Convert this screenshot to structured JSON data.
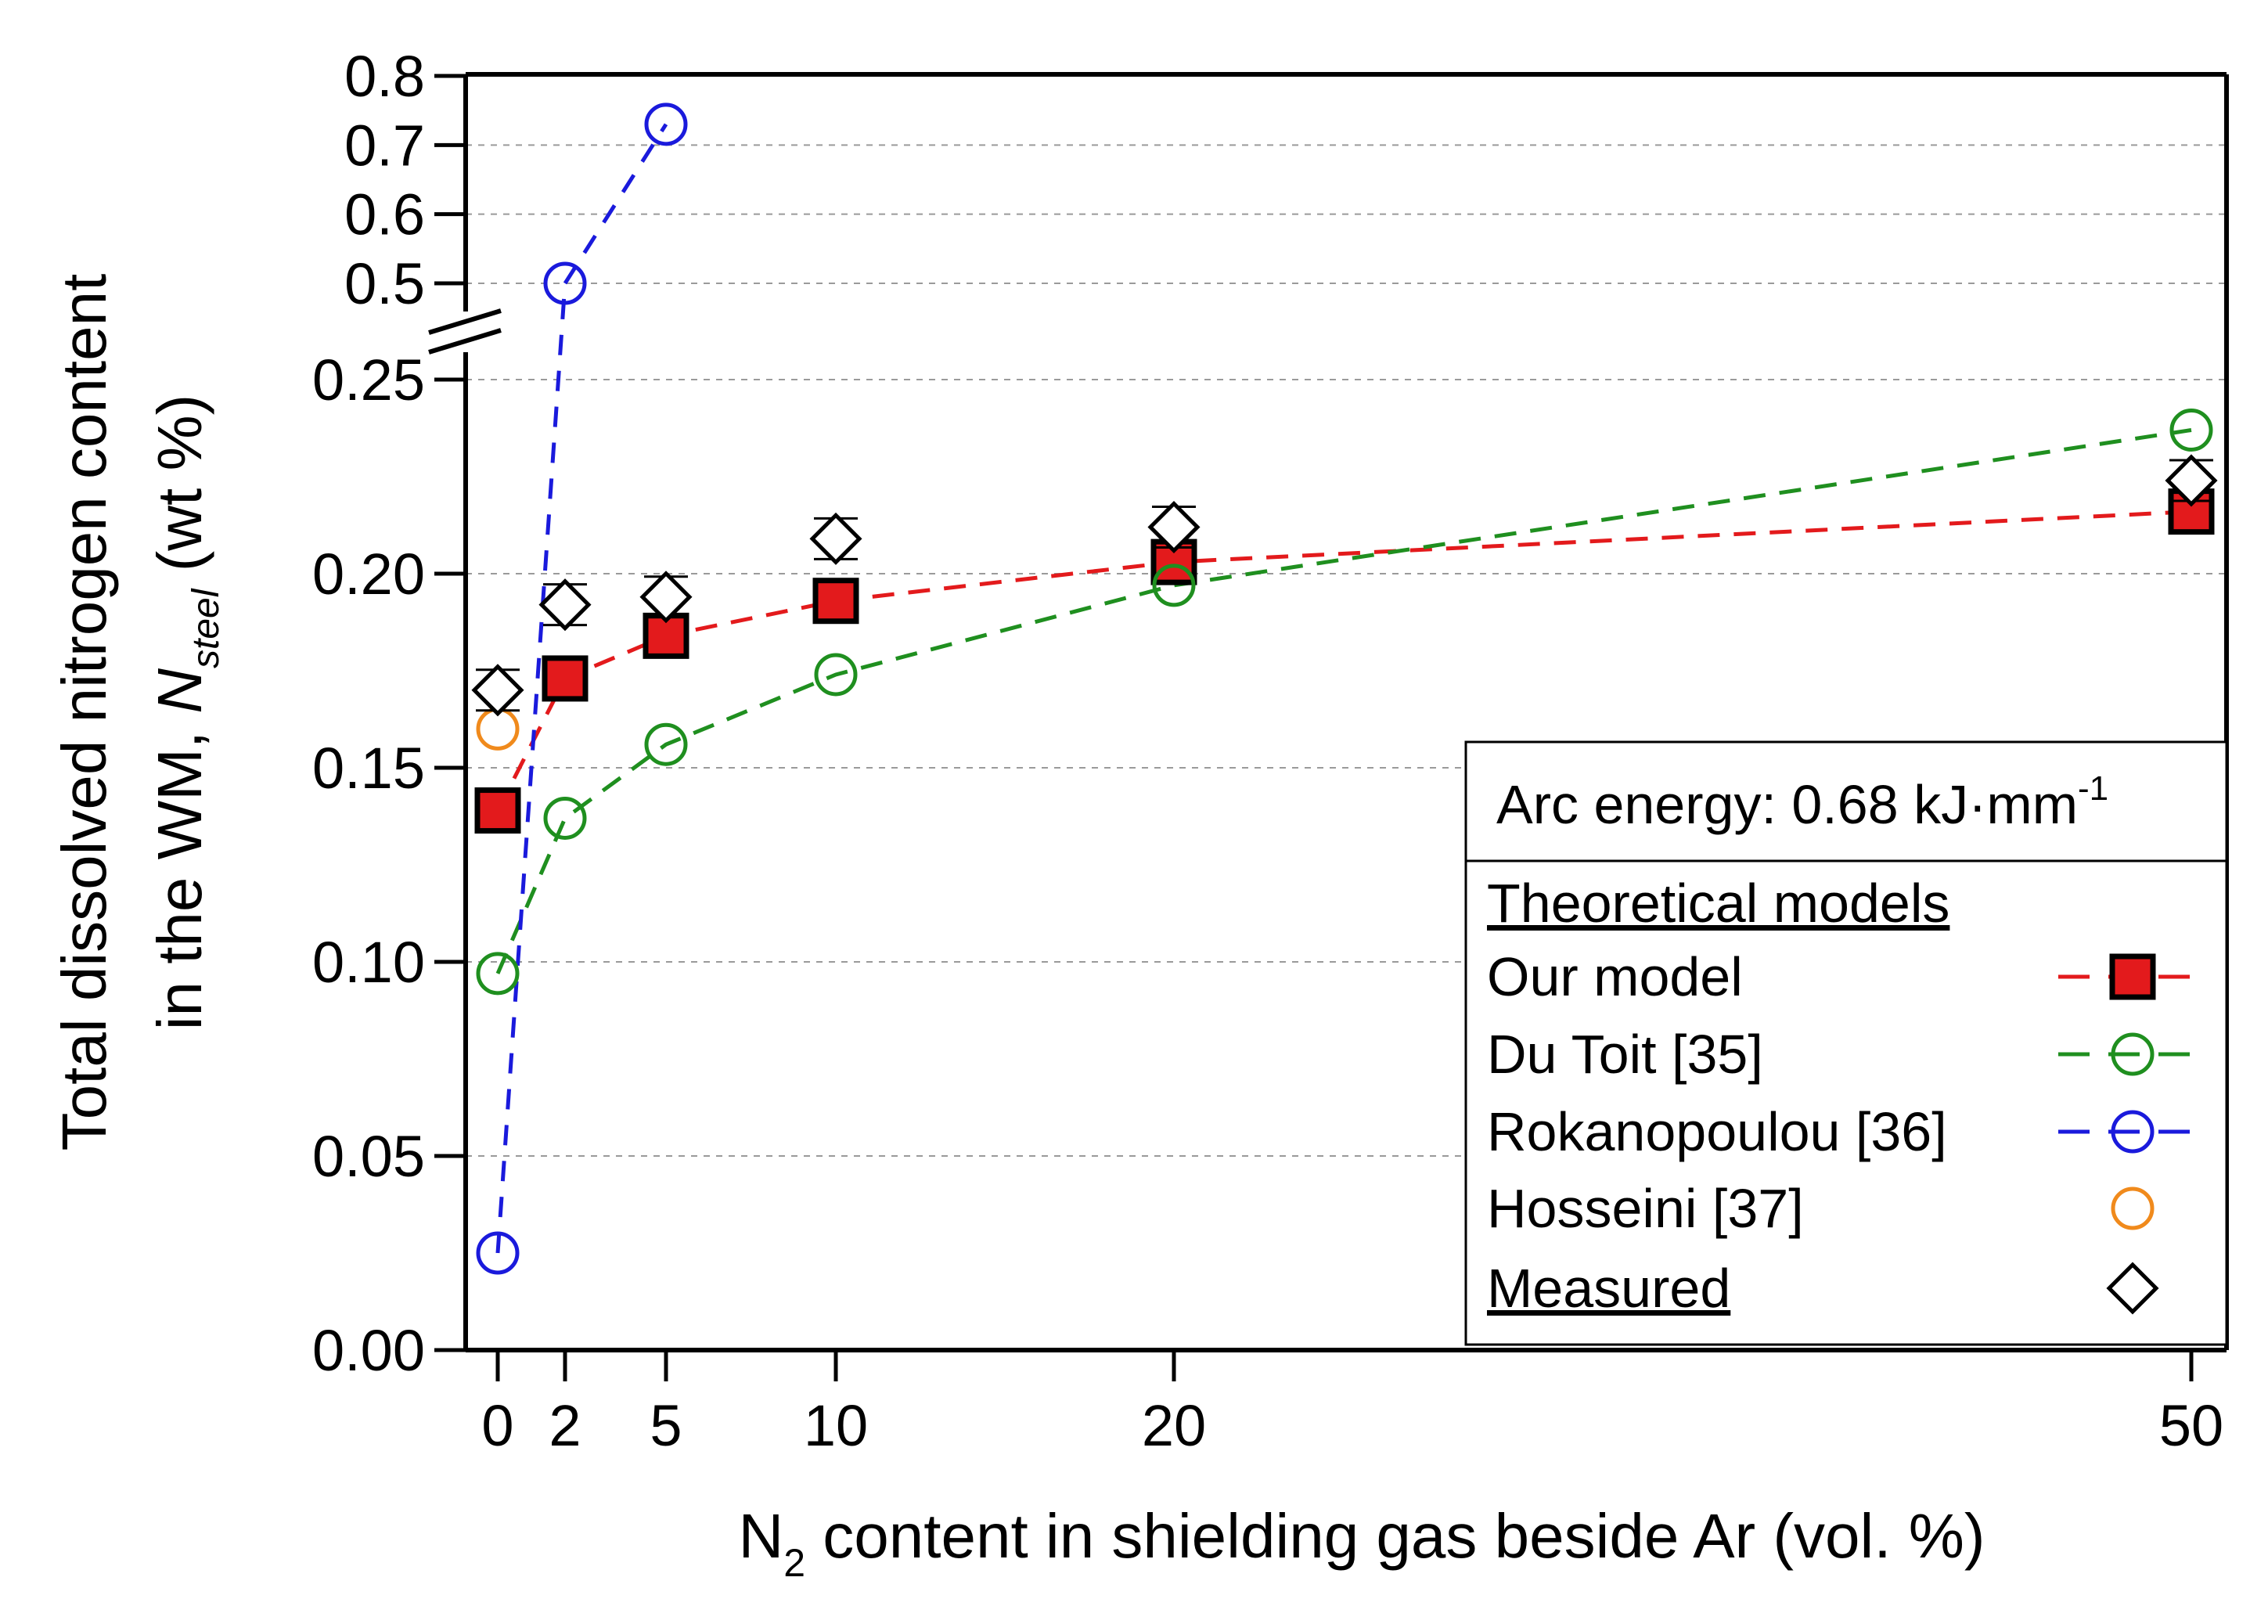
{
  "chart_data": {
    "type": "scatter",
    "xlabel_main": "N",
    "xlabel_sub": "2",
    "xlabel_rest": " content in shielding gas beside Ar (vol. %)",
    "ylabel_line1": "Total dissolved nitrogen content",
    "ylabel_line2_a": "in the WM, ",
    "ylabel_line2_b": "N",
    "ylabel_line2_sub": "steel",
    "ylabel_line2_c": " (wt %)",
    "x_ticks": [
      0,
      2,
      5,
      10,
      20,
      50
    ],
    "x_tick_labels": [
      "0",
      "2",
      "5",
      "10",
      "20",
      "50"
    ],
    "y_ticks_lower": [
      0.0,
      0.05,
      0.1,
      0.15,
      0.2,
      0.25
    ],
    "y_tick_labels_lower": [
      "0.00",
      "0.05",
      "0.10",
      "0.15",
      "0.20",
      "0.25"
    ],
    "y_ticks_upper": [
      0.5,
      0.6,
      0.7,
      0.8
    ],
    "y_tick_labels_upper": [
      "0.5",
      "0.6",
      "0.7",
      "0.8"
    ],
    "y_axis_break": "0.25 to 0.5",
    "grid": "horizontal dashed",
    "series": [
      {
        "name": "Our model",
        "marker": "square",
        "color": "#e31a1c",
        "line": true,
        "x": [
          0,
          2,
          5,
          10,
          20,
          50
        ],
        "y": [
          0.139,
          0.173,
          0.184,
          0.193,
          0.203,
          0.216
        ]
      },
      {
        "name": "Du Toit  [35]",
        "marker": "circle",
        "color": "#1f8f1f",
        "line": true,
        "x": [
          0,
          2,
          5,
          10,
          20,
          50
        ],
        "y": [
          0.097,
          0.137,
          0.156,
          0.174,
          0.197,
          0.237
        ]
      },
      {
        "name": "Rokanopoulou [36]",
        "marker": "circle",
        "color": "#1a1adc",
        "line": true,
        "x": [
          0,
          2,
          5
        ],
        "y": [
          0.025,
          0.5,
          0.73
        ]
      },
      {
        "name": "Hosseini  [37]",
        "marker": "circle",
        "color": "#f08a1c",
        "line": false,
        "x": [
          0
        ],
        "y": [
          0.16
        ]
      },
      {
        "name": "Measured",
        "marker": "diamond",
        "color": "#000000",
        "line": false,
        "x": [
          0,
          2,
          5,
          10,
          20,
          50
        ],
        "y": [
          0.17,
          0.192,
          0.194,
          0.209,
          0.212,
          0.224
        ]
      }
    ],
    "legend": {
      "placement": "bottom-right",
      "header_text": "Arc energy: 0.68 kJ·mm",
      "header_sup": "-1",
      "section_title": "Theoretical models",
      "measured_label": "Measured"
    }
  }
}
